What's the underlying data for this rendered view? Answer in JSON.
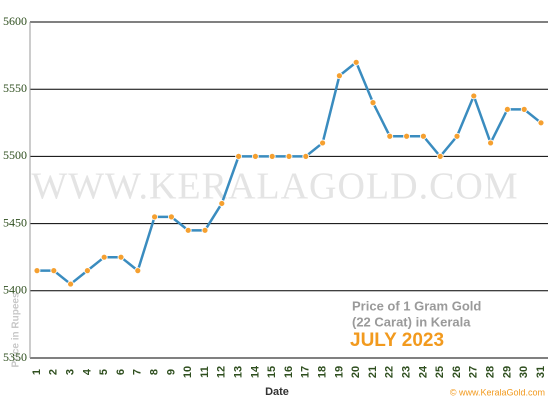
{
  "chart_data": {
    "type": "line",
    "categories": [
      "1",
      "2",
      "3",
      "4",
      "5",
      "6",
      "7",
      "8",
      "9",
      "10",
      "11",
      "12",
      "13",
      "14",
      "15",
      "16",
      "17",
      "18",
      "19",
      "20",
      "21",
      "22",
      "23",
      "24",
      "25",
      "26",
      "27",
      "28",
      "29",
      "30",
      "31"
    ],
    "series": [
      {
        "name": "Price",
        "color": "#3a8cbf",
        "marker_color": "#f5a030",
        "values": [
          5415,
          5415,
          5405,
          5415,
          5425,
          5425,
          5415,
          5455,
          5455,
          5445,
          5445,
          5465,
          5500,
          5500,
          5500,
          5500,
          5500,
          5510,
          5560,
          5570,
          5540,
          5515,
          5515,
          5515,
          5500,
          5515,
          5545,
          5510,
          5535,
          5535,
          5525
        ]
      }
    ],
    "ylim": [
      5350,
      5600
    ],
    "yticks": [
      5350,
      5400,
      5450,
      5500,
      5550,
      5600
    ],
    "grid": true,
    "x_label": "Date",
    "y_label": "Price in Rupees",
    "watermark": "WWW.KERALAGOLD.COM",
    "annotation": [
      "Price of 1 Gram Gold",
      "(22 Carat) in Kerala"
    ],
    "annotation_highlight": "JULY 2023",
    "footer": "© www.KeralaGold.com"
  }
}
